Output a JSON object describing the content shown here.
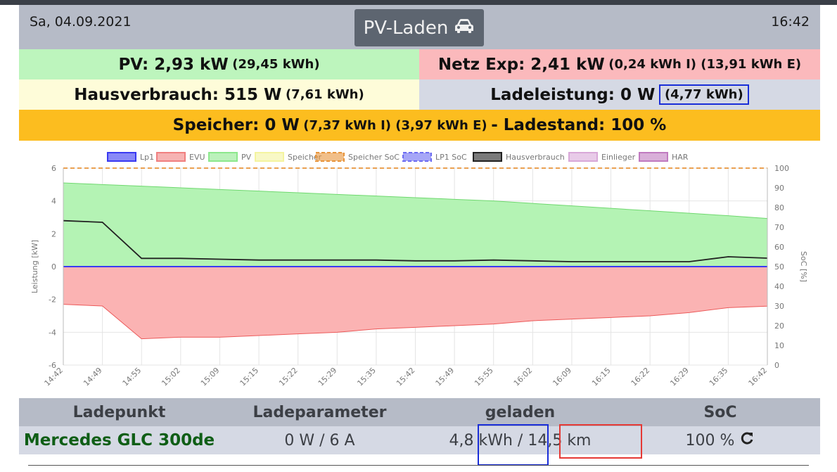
{
  "header": {
    "date": "Sa, 04.09.2021",
    "time": "16:42",
    "mode_label": "PV-Laden",
    "mode_icon": "car-icon"
  },
  "summary": {
    "pv_label": "PV: 2,93 kW",
    "pv_energy": "(29,45 kWh)",
    "netz_label": "Netz Exp: 2,41 kW",
    "netz_energy": "(0,24 kWh I) (13,91 kWh E)",
    "haus_label": "Hausverbrauch: 515 W",
    "haus_energy": "(7,61 kWh)",
    "lade_label": "Ladeleistung: 0 W",
    "lade_energy": "(4,77 kWh)",
    "speicher_label": "Speicher: 0 W",
    "speicher_energy": "(7,37 kWh I) (3,97 kWh E)",
    "speicher_state": "- Ladestand: 100 %"
  },
  "colors": {
    "pv": "#bdf5bd",
    "evu": "#fbb9bc",
    "speicher_bar": "#fcbd1f",
    "header": "#b6bbc7",
    "vehicle": "#0f5e16"
  },
  "chart_data": {
    "type": "area",
    "legend": [
      "Lp1",
      "EVU",
      "PV",
      "Speicher",
      "Speicher SoC",
      "LP1 SoC",
      "Hausverbrauch",
      "Einlieger",
      "HAR"
    ],
    "legend_colors": [
      "#3a3af2",
      "#f08080",
      "#8de88d",
      "#f4f4a0",
      "#e8943a",
      "#6b6bf2",
      "#222222",
      "#d8a8d8",
      "#c07ac0"
    ],
    "legend_placement": "top",
    "ylabel": "Leistung [kW]",
    "y2label": "SoC [%]",
    "ylim": [
      -6,
      6
    ],
    "y2lim": [
      0,
      100
    ],
    "yticks": [
      "6",
      "4",
      "2",
      "0",
      "-2",
      "-4",
      "-6"
    ],
    "y2ticks": [
      "100",
      "90",
      "80",
      "70",
      "60",
      "50",
      "40",
      "30",
      "20",
      "10",
      "0"
    ],
    "xticks": [
      "14:42",
      "14:49",
      "14:55",
      "15:02",
      "15:09",
      "15:15",
      "15:22",
      "15:29",
      "15:35",
      "15:42",
      "15:49",
      "15:55",
      "16:02",
      "16:09",
      "16:15",
      "16:22",
      "16:29",
      "16:35",
      "16:42"
    ],
    "series": [
      {
        "name": "PV",
        "color": "#8de88d",
        "values": [
          5.1,
          5.0,
          4.9,
          4.8,
          4.7,
          4.6,
          4.5,
          4.4,
          4.3,
          4.2,
          4.1,
          4.0,
          3.85,
          3.7,
          3.55,
          3.4,
          3.25,
          3.1,
          2.93
        ]
      },
      {
        "name": "EVU",
        "color": "#f08080",
        "values": [
          -2.3,
          -2.4,
          -4.4,
          -4.3,
          -4.3,
          -4.2,
          -4.1,
          -4.0,
          -3.8,
          -3.7,
          -3.6,
          -3.5,
          -3.3,
          -3.2,
          -3.1,
          -3.0,
          -2.8,
          -2.5,
          -2.41
        ]
      },
      {
        "name": "Hausverbrauch",
        "color": "#222222",
        "values": [
          2.8,
          2.7,
          0.5,
          0.5,
          0.45,
          0.4,
          0.4,
          0.4,
          0.4,
          0.35,
          0.35,
          0.4,
          0.35,
          0.3,
          0.3,
          0.3,
          0.3,
          0.6,
          0.515
        ]
      },
      {
        "name": "Lp1",
        "color": "#3a3af2",
        "values": [
          0,
          0,
          0,
          0,
          0,
          0,
          0,
          0,
          0,
          0,
          0,
          0,
          0,
          0,
          0,
          0,
          0,
          0,
          0
        ]
      },
      {
        "name": "Speicher SoC",
        "color": "#e8943a",
        "axis": "right",
        "values": [
          100,
          100,
          100,
          100,
          100,
          100,
          100,
          100,
          100,
          100,
          100,
          100,
          100,
          100,
          100,
          100,
          100,
          100,
          100
        ]
      }
    ]
  },
  "table": {
    "headers": [
      "Ladepunkt",
      "Ladeparameter",
      "geladen",
      "SoC"
    ],
    "vehicle": "Mercedes GLC 300de",
    "parameter": "0 W / 6 A",
    "geladen_kwh": "4,8 kWh",
    "geladen_sep": "/",
    "geladen_km": "14,5 km",
    "soc": "100 %",
    "refresh_icon": "refresh-icon"
  }
}
